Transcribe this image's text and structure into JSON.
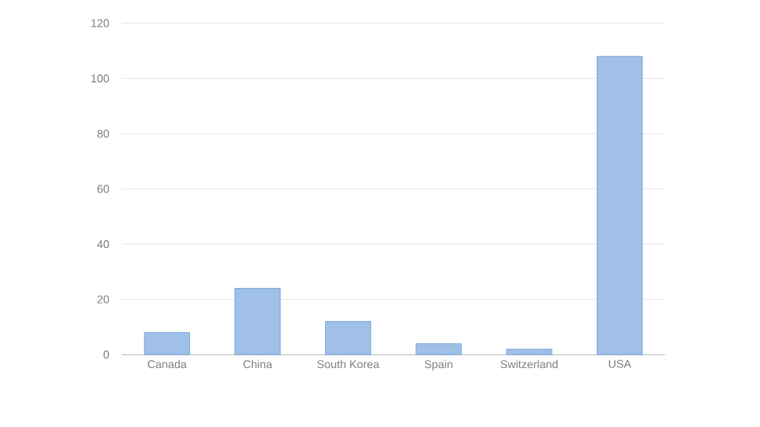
{
  "chart_data": {
    "type": "bar",
    "categories": [
      "Canada",
      "China",
      "South Korea",
      "Spain",
      "Switzerland",
      "USA"
    ],
    "values": [
      8,
      24,
      12,
      4,
      2,
      108
    ],
    "color": "#a0c0e7",
    "ylim": [
      0,
      120
    ],
    "yticks": [
      0,
      20,
      40,
      60,
      80,
      100,
      120
    ],
    "grid": "y"
  }
}
